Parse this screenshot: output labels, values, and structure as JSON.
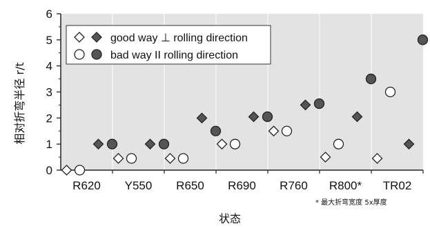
{
  "chart_data": {
    "type": "scatter",
    "ylabel": "相对折弯半径 r/t",
    "xlabel": "状态",
    "ylim": [
      0,
      6
    ],
    "yticks": [
      0,
      1,
      2,
      3,
      4,
      5,
      6
    ],
    "grid": false,
    "background": "#e3e3e3",
    "legend_position": "top-left",
    "categories": [
      "R620",
      "Y550",
      "R650",
      "R690",
      "R760",
      "R800*",
      "TR02"
    ],
    "series": [
      {
        "name": "good way ⊥ rolling direction",
        "marker": "diamond",
        "fill": "open",
        "values": [
          0,
          0.45,
          0.45,
          1.0,
          1.5,
          0.5,
          0.45
        ]
      },
      {
        "name": "good way ⊥ rolling direction",
        "marker": "diamond",
        "fill": "filled",
        "values": [
          1.0,
          1.0,
          2.0,
          2.05,
          2.5,
          2.05,
          1.0
        ]
      },
      {
        "name": "bad way II rolling direction",
        "marker": "circle",
        "fill": "open",
        "values": [
          0,
          0.45,
          0.45,
          1.0,
          1.5,
          1.0,
          3.0
        ]
      },
      {
        "name": "bad way II rolling direction",
        "marker": "circle",
        "fill": "filled",
        "values": [
          1.0,
          1.0,
          1.5,
          2.05,
          2.55,
          3.5,
          5.0
        ]
      }
    ],
    "legend": [
      {
        "label": "good way ⊥ rolling direction"
      },
      {
        "label": "bad way II rolling direction"
      }
    ],
    "footnote": "* 最大折弯宽度 5x厚度",
    "colors": {
      "filled": "#555555",
      "open": "#ffffff",
      "stroke": "#222222"
    }
  }
}
